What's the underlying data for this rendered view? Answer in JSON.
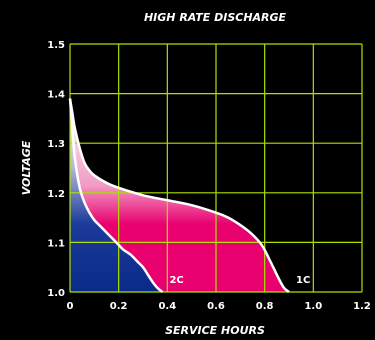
{
  "chart_data": {
    "type": "area",
    "title": "HIGH RATE DISCHARGE",
    "xlabel": "SERVICE HOURS",
    "ylabel": "VOLTAGE",
    "xlim": [
      0,
      1.2
    ],
    "ylim": [
      1.0,
      1.5
    ],
    "x_ticks": [
      "0",
      "0.2",
      "0.4",
      "0.6",
      "0.8",
      "1.0",
      "1.2"
    ],
    "y_ticks": [
      "1.0",
      "1.1",
      "1.2",
      "1.3",
      "1.4",
      "1.5"
    ],
    "grid": true,
    "grid_color": "#aee000",
    "series": [
      {
        "name": "1C",
        "color_top": "#ffffff",
        "color_bottom": "#e8006f",
        "x": [
          0,
          0.01,
          0.02,
          0.04,
          0.06,
          0.08,
          0.1,
          0.15,
          0.2,
          0.3,
          0.4,
          0.5,
          0.6,
          0.65,
          0.7,
          0.74,
          0.78,
          0.8,
          0.82,
          0.84,
          0.86,
          0.88,
          0.9
        ],
        "y": [
          1.39,
          1.36,
          1.33,
          1.29,
          1.26,
          1.245,
          1.235,
          1.22,
          1.21,
          1.195,
          1.185,
          1.175,
          1.16,
          1.15,
          1.135,
          1.12,
          1.1,
          1.085,
          1.065,
          1.045,
          1.025,
          1.008,
          1.0
        ]
      },
      {
        "name": "2C",
        "color_top": "#ffffff",
        "color_bottom": "#0a2a8a",
        "x": [
          0,
          0.01,
          0.02,
          0.04,
          0.06,
          0.08,
          0.1,
          0.12,
          0.15,
          0.18,
          0.2,
          0.22,
          0.25,
          0.28,
          0.3,
          0.32,
          0.34,
          0.36,
          0.38
        ],
        "y": [
          1.39,
          1.33,
          1.27,
          1.21,
          1.18,
          1.16,
          1.145,
          1.135,
          1.12,
          1.105,
          1.095,
          1.085,
          1.075,
          1.06,
          1.05,
          1.035,
          1.02,
          1.008,
          1.0
        ]
      }
    ]
  }
}
